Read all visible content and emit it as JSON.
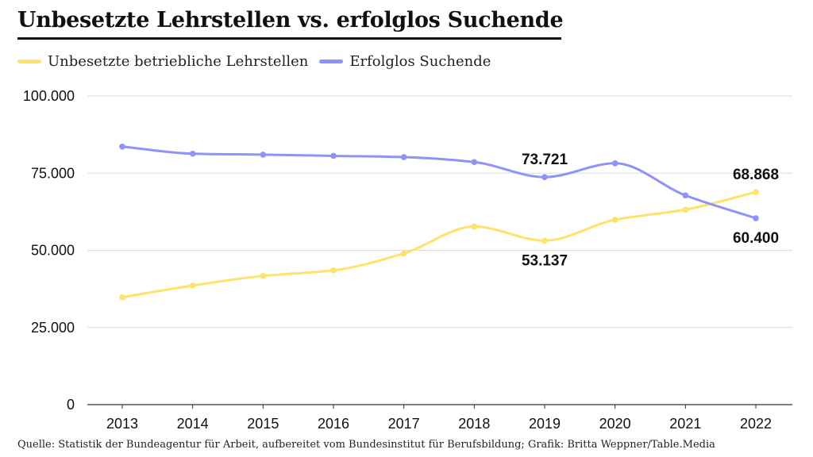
{
  "chart_data": {
    "type": "line",
    "title": "Unbesetzte Lehrstellen vs. erfolglos Suchende",
    "subtitle": "",
    "xlabel": "",
    "ylabel": "",
    "x": [
      "2013",
      "2014",
      "2015",
      "2016",
      "2017",
      "2018",
      "2019",
      "2020",
      "2021",
      "2022"
    ],
    "ylim": [
      0,
      100000
    ],
    "yticks": [
      {
        "value": 0,
        "label": "0"
      },
      {
        "value": 25000,
        "label": "25.000"
      },
      {
        "value": 50000,
        "label": "50.000"
      },
      {
        "value": 75000,
        "label": "75.000"
      },
      {
        "value": 100000,
        "label": "100.000"
      }
    ],
    "grid": true,
    "legend": "top-left",
    "series": [
      {
        "name": "Unbesetzte betriebliche Lehrstellen",
        "color": "#fde36a",
        "values": [
          34800,
          38600,
          41700,
          43500,
          49000,
          57700,
          53137,
          59900,
          63200,
          68868
        ]
      },
      {
        "name": "Erfolglos Suchende",
        "color": "#8f93f7",
        "values": [
          83600,
          81300,
          81000,
          80600,
          80200,
          78600,
          73721,
          78200,
          67800,
          60400
        ]
      }
    ],
    "annotations": [
      {
        "series": 1,
        "index": 6,
        "text": "73.721",
        "position": "above"
      },
      {
        "series": 0,
        "index": 6,
        "text": "53.137",
        "position": "below"
      },
      {
        "series": 0,
        "index": 9,
        "text": "68.868",
        "position": "above"
      },
      {
        "series": 1,
        "index": 9,
        "text": "60.400",
        "position": "below"
      }
    ],
    "source": "Quelle: Statistik der Bundeagentur für Arbeit, aufbereitet vom Bundesinstitut für Berufsbildung; Grafik: Britta Weppner/Table.Media"
  }
}
